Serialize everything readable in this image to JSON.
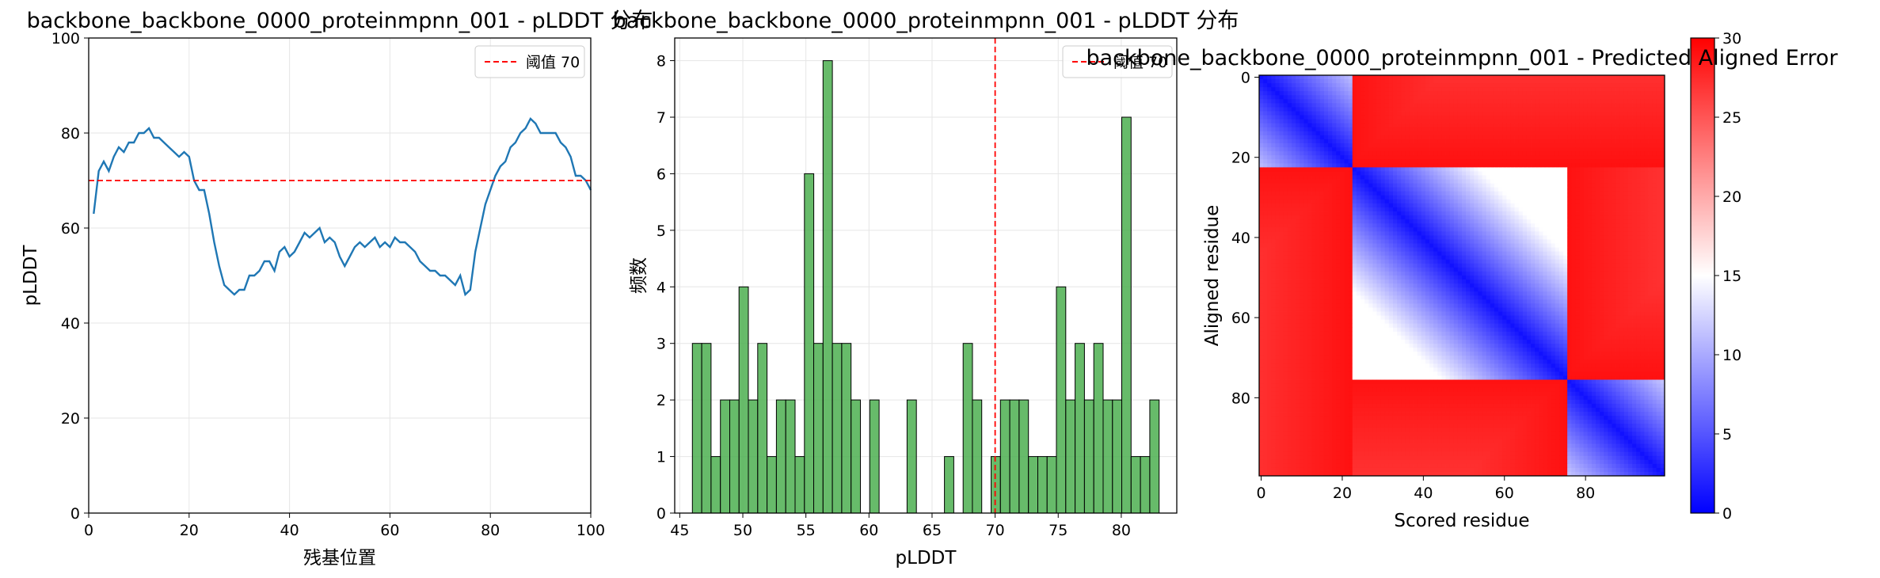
{
  "colors": {
    "line": "#1f77b4",
    "threshold": "#ff0000",
    "hist_fill": "#4caf50",
    "hist_edge": "#000000",
    "grid": "#e6e6e6"
  },
  "chart_data": [
    {
      "type": "line",
      "title": "backbone_backbone_0000_proteinmpnn_001 - pLDDT 分布",
      "xlabel": "残基位置",
      "ylabel": "pLDDT",
      "xlim": [
        0,
        100
      ],
      "ylim": [
        0,
        100
      ],
      "xticks": [
        "0",
        "20",
        "40",
        "60",
        "80",
        "100"
      ],
      "yticks": [
        "0",
        "20",
        "40",
        "60",
        "80",
        "100"
      ],
      "grid": true,
      "legend": {
        "position": "top-right",
        "entries": [
          "阈值 70"
        ]
      },
      "threshold": 70,
      "x": [
        1,
        2,
        3,
        4,
        5,
        6,
        7,
        8,
        9,
        10,
        11,
        12,
        13,
        14,
        15,
        16,
        17,
        18,
        19,
        20,
        21,
        22,
        23,
        24,
        25,
        26,
        27,
        28,
        29,
        30,
        31,
        32,
        33,
        34,
        35,
        36,
        37,
        38,
        39,
        40,
        41,
        42,
        43,
        44,
        45,
        46,
        47,
        48,
        49,
        50,
        51,
        52,
        53,
        54,
        55,
        56,
        57,
        58,
        59,
        60,
        61,
        62,
        63,
        64,
        65,
        66,
        67,
        68,
        69,
        70,
        71,
        72,
        73,
        74,
        75,
        76,
        77,
        78,
        79,
        80,
        81,
        82,
        83,
        84,
        85,
        86,
        87,
        88,
        89,
        90,
        91,
        92,
        93,
        94,
        95,
        96,
        97,
        98,
        99,
        100
      ],
      "series": [
        {
          "values": [
            63,
            72,
            74,
            72,
            75,
            77,
            76,
            78,
            78,
            80,
            80,
            81,
            79,
            79,
            78,
            77,
            76,
            75,
            76,
            75,
            70,
            68,
            68,
            63,
            57,
            52,
            48,
            47,
            46,
            47,
            47,
            50,
            50,
            51,
            53,
            53,
            51,
            55,
            56,
            54,
            55,
            57,
            59,
            58,
            59,
            60,
            57,
            58,
            57,
            54,
            52,
            54,
            56,
            57,
            56,
            57,
            58,
            56,
            57,
            56,
            58,
            57,
            57,
            56,
            55,
            53,
            52,
            51,
            51,
            50,
            50,
            49,
            48,
            50,
            46,
            47,
            55,
            60,
            65,
            68,
            71,
            73,
            74,
            77,
            78,
            80,
            81,
            83,
            82,
            80,
            80,
            80,
            80,
            78,
            77,
            75,
            71,
            71,
            70,
            68
          ]
        }
      ]
    },
    {
      "type": "bar",
      "title": "backbone_backbone_0000_proteinmpnn_001 - pLDDT 分布",
      "xlabel": "pLDDT",
      "ylabel": "频数",
      "xlim": [
        44.6,
        84.4
      ],
      "ylim": [
        0,
        8.4
      ],
      "xticks": [
        "45",
        "50",
        "55",
        "60",
        "65",
        "70",
        "75",
        "80"
      ],
      "yticks": [
        "0",
        "1",
        "2",
        "3",
        "4",
        "5",
        "6",
        "7",
        "8"
      ],
      "grid": true,
      "legend": {
        "position": "top-right",
        "entries": [
          "阈值 70"
        ]
      },
      "threshold": 70,
      "bin_start": 46.0,
      "bin_width": 0.74,
      "values": [
        3,
        3,
        1,
        2,
        2,
        4,
        2,
        3,
        1,
        2,
        2,
        1,
        6,
        3,
        8,
        3,
        3,
        2,
        0,
        2,
        0,
        0,
        0,
        2,
        0,
        0,
        0,
        1,
        0,
        3,
        2,
        0,
        1,
        2,
        2,
        2,
        1,
        1,
        1,
        4,
        2,
        3,
        2,
        3,
        2,
        2,
        7,
        1,
        1,
        2
      ]
    },
    {
      "type": "heatmap",
      "title": "backbone_backbone_0000_proteinmpnn_001 - Predicted Aligned Error",
      "xlabel": "Scored residue",
      "ylabel": "Aligned residue",
      "size": 100,
      "xticks": [
        "0",
        "20",
        "40",
        "60",
        "80"
      ],
      "yticks": [
        "0",
        "20",
        "40",
        "60",
        "80"
      ],
      "colorbar": {
        "min": 0,
        "max": 30,
        "ticks": [
          "0",
          "5",
          "10",
          "15",
          "20",
          "25",
          "30"
        ],
        "colormap": "bwr"
      },
      "domains": [
        {
          "from": 0,
          "to": 22
        },
        {
          "from": 23,
          "to": 75
        },
        {
          "from": 76,
          "to": 99
        }
      ]
    }
  ]
}
